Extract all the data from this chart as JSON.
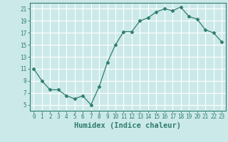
{
  "x": [
    0,
    1,
    2,
    3,
    4,
    5,
    6,
    7,
    8,
    9,
    10,
    11,
    12,
    13,
    14,
    15,
    16,
    17,
    18,
    19,
    20,
    21,
    22,
    23
  ],
  "y": [
    11,
    9,
    7.5,
    7.5,
    6.5,
    6,
    6.5,
    5,
    8,
    12,
    15,
    17.2,
    17.2,
    19,
    19.5,
    20.5,
    21,
    20.7,
    21.3,
    19.7,
    19.3,
    17.5,
    17,
    15.5
  ],
  "line_color": "#2e7d6e",
  "marker": "D",
  "marker_size": 2.5,
  "bg_color": "#cce9e9",
  "grid_color": "#ffffff",
  "axis_color": "#2e7d6e",
  "xlabel": "Humidex (Indice chaleur)",
  "xlabel_fontsize": 7.5,
  "xlim": [
    -0.5,
    23.5
  ],
  "ylim": [
    4,
    22
  ],
  "yticks": [
    5,
    7,
    9,
    11,
    13,
    15,
    17,
    19,
    21
  ],
  "xtick_labels": [
    "0",
    "1",
    "2",
    "3",
    "4",
    "5",
    "6",
    "7",
    "8",
    "9",
    "10",
    "11",
    "12",
    "13",
    "14",
    "15",
    "16",
    "17",
    "18",
    "19",
    "20",
    "21",
    "22",
    "23"
  ]
}
